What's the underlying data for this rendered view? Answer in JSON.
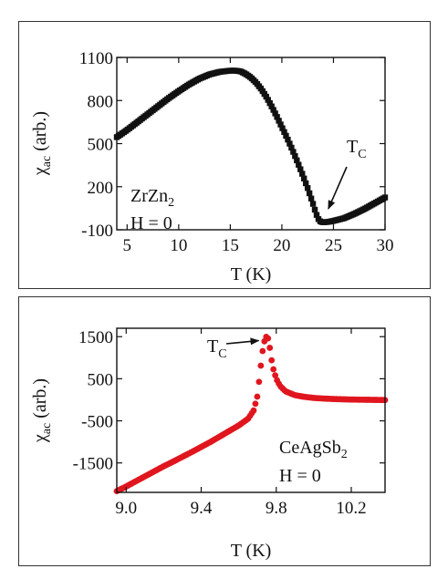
{
  "chart_data": [
    {
      "type": "scatter",
      "xlabel": "T (K)",
      "ylabel_main": "χ",
      "ylabel_sub": "ac",
      "ylabel_rest": " (arb.)",
      "xlim": [
        4,
        30
      ],
      "ylim": [
        -100,
        1100
      ],
      "xticks": [
        5,
        10,
        15,
        20,
        25,
        30
      ],
      "yticks": [
        -100,
        200,
        500,
        800,
        1100
      ],
      "marker": "square",
      "color": "#111111",
      "annotations": {
        "sample_main": "ZrZn",
        "sample_sub": "2",
        "field": "H = 0",
        "tc_main": "T",
        "tc_sub": "C"
      },
      "tc_point": [
        23.8,
        -30
      ],
      "series": [
        {
          "x": [
            4.0,
            5.0,
            6.0,
            7.0,
            8.0,
            9.0,
            10.0,
            11.0,
            12.0,
            13.0,
            14.0,
            15.0,
            15.5,
            16.0,
            16.5,
            17.0,
            17.5,
            18.0,
            18.5,
            19.0,
            19.5,
            20.0,
            20.5,
            21.0,
            21.5,
            22.0,
            22.5,
            23.0,
            23.3,
            23.6,
            23.8,
            24.0,
            24.5,
            25.0,
            26.0,
            27.0,
            28.0,
            29.0,
            30.0
          ],
          "y": [
            545,
            595,
            650,
            705,
            760,
            815,
            865,
            912,
            952,
            982,
            1000,
            1008,
            1008,
            1003,
            985,
            960,
            925,
            880,
            825,
            760,
            690,
            615,
            540,
            460,
            375,
            285,
            190,
            85,
            15,
            -35,
            -45,
            -48,
            -45,
            -38,
            -20,
            10,
            45,
            85,
            125
          ]
        }
      ]
    },
    {
      "type": "scatter",
      "xlabel": "T (K)",
      "ylabel_main": "χ",
      "ylabel_sub": "ac",
      "ylabel_rest": " (arb.)",
      "xlim": [
        8.95,
        10.38
      ],
      "ylim": [
        -2200,
        1700
      ],
      "xticks": [
        9.0,
        9.4,
        9.8,
        10.2
      ],
      "xtick_labels": [
        "9.0",
        "9.4",
        "9.8",
        "10.2"
      ],
      "yticks": [
        -1500,
        -500,
        500,
        1500
      ],
      "marker": "circle",
      "color": "#e0161e",
      "annotations": {
        "sample_main": "CeAgSb",
        "sample_sub": "2",
        "field": "H = 0",
        "tc_main": "T",
        "tc_sub": "C"
      },
      "tc_point": [
        9.75,
        1450
      ],
      "series": [
        {
          "x": [
            8.95,
            9.0,
            9.05,
            9.1,
            9.15,
            9.2,
            9.25,
            9.3,
            9.35,
            9.4,
            9.45,
            9.5,
            9.55,
            9.6,
            9.65,
            9.68,
            9.7,
            9.71,
            9.72,
            9.73,
            9.74,
            9.75,
            9.76,
            9.77,
            9.78,
            9.8,
            9.82,
            9.85,
            9.9,
            9.95,
            10.0,
            10.05,
            10.1,
            10.15,
            10.2,
            10.25,
            10.3,
            10.35,
            10.38
          ],
          "y": [
            -2170,
            -2060,
            -1940,
            -1820,
            -1700,
            -1580,
            -1470,
            -1355,
            -1240,
            -1120,
            -1000,
            -870,
            -740,
            -610,
            -450,
            -250,
            100,
            500,
            900,
            1250,
            1450,
            1520,
            1420,
            1100,
            800,
            500,
            330,
            200,
            110,
            70,
            45,
            30,
            20,
            12,
            6,
            2,
            0,
            -4,
            -6
          ]
        }
      ]
    }
  ]
}
